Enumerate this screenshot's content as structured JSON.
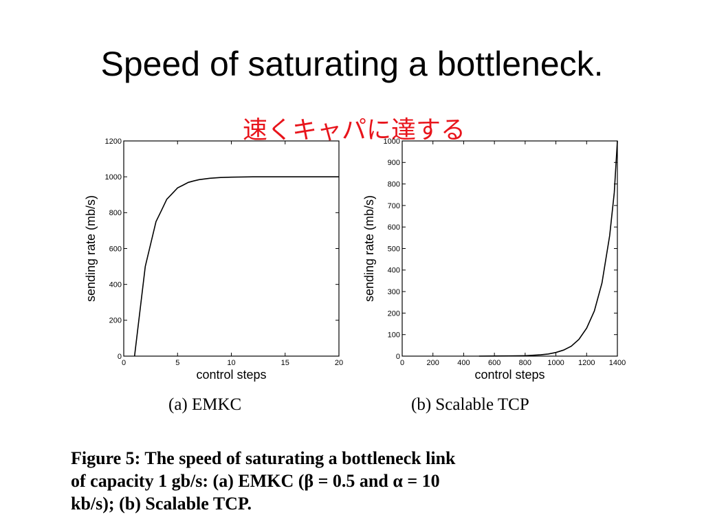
{
  "slide": {
    "title": "Speed of saturating a bottleneck.",
    "annotation": "速くキャパに達する",
    "annotation_color": "#e8141b"
  },
  "figure": {
    "panel_a_caption": "(a) EMKC",
    "panel_b_caption": "(b) Scalable TCP",
    "caption_lines": [
      "Figure 5: The speed of saturating a bottleneck link",
      "of capacity 1 gb/s: (a) EMKC (β = 0.5 and α = 10",
      "kb/s); (b) Scalable TCP."
    ]
  },
  "chart_data": [
    {
      "type": "line",
      "panel": "a",
      "xlabel": "control steps",
      "ylabel": "sending rate (mb/s)",
      "xlim": [
        0,
        20
      ],
      "ylim": [
        0,
        1200
      ],
      "xticks": [
        0,
        5,
        10,
        15,
        20
      ],
      "yticks": [
        0,
        200,
        400,
        600,
        800,
        1000,
        1200
      ],
      "grid": false,
      "series": [
        {
          "x": [
            1,
            1.5,
            2,
            2.5,
            3,
            3.5,
            4,
            4.5,
            5,
            5.5,
            6,
            6.5,
            7,
            8,
            9,
            10,
            12,
            15,
            20
          ],
          "y": [
            0,
            250,
            500,
            625,
            750,
            812,
            875,
            906,
            938,
            953,
            969,
            977,
            984,
            992,
            996,
            998,
            1000,
            1000,
            1000
          ]
        }
      ]
    },
    {
      "type": "line",
      "panel": "b",
      "xlabel": "control steps",
      "ylabel": "sending rate (mb/s)",
      "xlim": [
        0,
        1400
      ],
      "ylim": [
        0,
        1000
      ],
      "xticks": [
        0,
        200,
        400,
        600,
        800,
        1000,
        1200,
        1400
      ],
      "yticks": [
        0,
        100,
        200,
        300,
        400,
        500,
        600,
        700,
        800,
        900,
        1000
      ],
      "grid": false,
      "series": [
        {
          "x": [
            500,
            600,
            700,
            800,
            900,
            950,
            1000,
            1050,
            1100,
            1150,
            1200,
            1250,
            1300,
            1350,
            1380,
            1400
          ],
          "y": [
            0,
            0.5,
            1,
            2,
            6,
            10,
            17,
            28,
            46,
            78,
            130,
            210,
            340,
            560,
            760,
            1000
          ]
        }
      ]
    }
  ]
}
